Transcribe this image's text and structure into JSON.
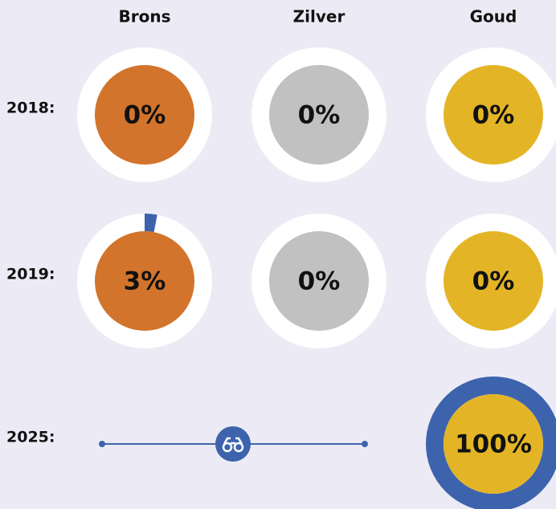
{
  "columns": [
    "Brons",
    "Zilver",
    "Goud"
  ],
  "colors": [
    "#d2742b",
    "#c1c1c1",
    "#e3b526"
  ],
  "progress_color": "#3e63ad",
  "rows": [
    {
      "label": "2018:",
      "cells": [
        {
          "value": 0,
          "label": "0%"
        },
        {
          "value": 0,
          "label": "0%"
        },
        {
          "value": 0,
          "label": "0%"
        }
      ]
    },
    {
      "label": "2019:",
      "cells": [
        {
          "value": 3,
          "label": "3%"
        },
        {
          "value": 0,
          "label": "0%"
        },
        {
          "value": 0,
          "label": "0%"
        }
      ]
    },
    {
      "label": "2025:",
      "cells": [
        null,
        null,
        {
          "value": 100,
          "label": "100%"
        }
      ]
    }
  ]
}
